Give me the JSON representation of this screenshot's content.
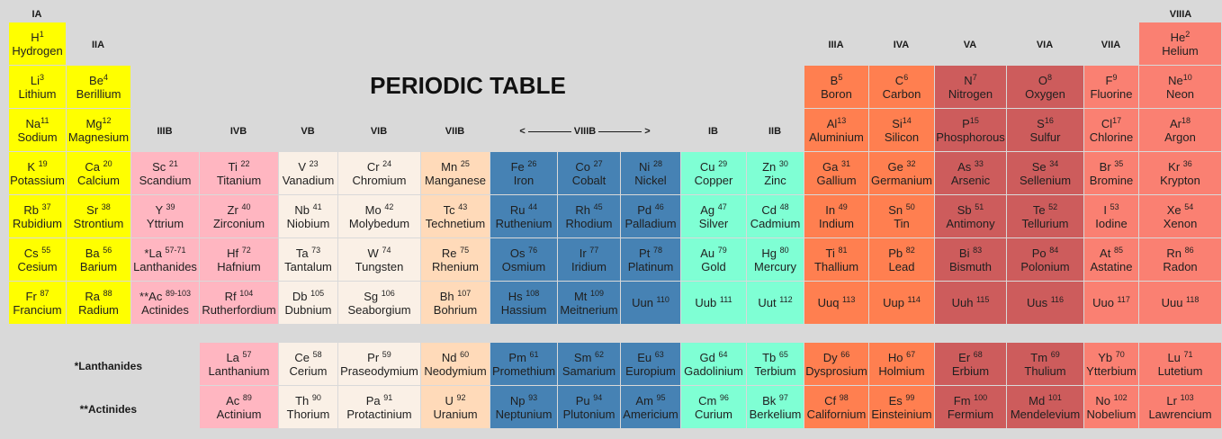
{
  "title": "PERIODIC TABLE",
  "colors": {
    "alkali": "#ffff00",
    "transition_b3b4": "#ffb6c1",
    "transition_light": "#faf0e6",
    "transition_b7": "#ffdab9",
    "transition_viii": "#4682b4",
    "transition_ib": "#7fffd4",
    "post_transition": "#ff7f50",
    "metalloid": "#cd5c5c",
    "halogen_noble": "#fa8072"
  },
  "group_labels": {
    "IA": "IA",
    "IIA": "IIA",
    "IIIB": "IIIB",
    "IVB": "IVB",
    "VB": "VB",
    "VIB": "VIB",
    "VIIB": "VIIB",
    "VIIIB_left": "<",
    "VIIIB": "VIIIB",
    "VIIIB_right": ">",
    "IB": "IB",
    "IIB": "IIB",
    "IIIA": "IIIA",
    "IVA": "IVA",
    "VA": "VA",
    "VIA": "VIA",
    "VIIA": "VIIA",
    "VIIIA": "VIIIA"
  },
  "row_labels": {
    "lanthanides": "*Lanthanides",
    "actinides": "**Actinides"
  },
  "elements": [
    {
      "sym": "H",
      "num": "1",
      "name": "Hydrogen",
      "sup_inline": true
    },
    {
      "sym": "He",
      "num": "2",
      "name": "Helium",
      "sup_inline": true
    },
    {
      "sym": "Li",
      "num": "3",
      "name": "Lithium",
      "sup_inline": true
    },
    {
      "sym": "Be",
      "num": "4",
      "name": "Berillium",
      "sup_inline": true
    },
    {
      "sym": "B",
      "num": "5",
      "name": "Boron",
      "sup_inline": true
    },
    {
      "sym": "C",
      "num": "6",
      "name": "Carbon",
      "sup_inline": true
    },
    {
      "sym": "N",
      "num": "7",
      "name": "Nitrogen",
      "sup_inline": true
    },
    {
      "sym": "O",
      "num": "8",
      "name": "Oxygen",
      "sup_inline": true
    },
    {
      "sym": "F",
      "num": "9",
      "name": "Fluorine",
      "sup_inline": true
    },
    {
      "sym": "Ne",
      "num": "10",
      "name": "Neon",
      "sup_inline": true
    },
    {
      "sym": "Na",
      "num": "11",
      "name": "Sodium",
      "sup_inline": true
    },
    {
      "sym": "Mg",
      "num": "12",
      "name": "Magnesium",
      "sup_inline": true
    },
    {
      "sym": "Al",
      "num": "13",
      "name": "Aluminium",
      "sup_inline": true
    },
    {
      "sym": "Si",
      "num": "14",
      "name": "Silicon",
      "sup_inline": true
    },
    {
      "sym": "P",
      "num": "15",
      "name": "Phosphorous",
      "sup_inline": true
    },
    {
      "sym": "S",
      "num": "16",
      "name": "Sulfur",
      "sup_inline": true
    },
    {
      "sym": "Cl",
      "num": "17",
      "name": "Chlorine",
      "sup_inline": true
    },
    {
      "sym": "Ar",
      "num": "18",
      "name": "Argon",
      "sup_inline": true
    },
    {
      "sym": "K",
      "num": "19",
      "name": "Potassium"
    },
    {
      "sym": "Ca",
      "num": "20",
      "name": "Calcium"
    },
    {
      "sym": "Sc",
      "num": "21",
      "name": "Scandium"
    },
    {
      "sym": "Ti",
      "num": "22",
      "name": "Titanium"
    },
    {
      "sym": "V",
      "num": "23",
      "name": "Vanadium"
    },
    {
      "sym": "Cr",
      "num": "24",
      "name": "Chromium"
    },
    {
      "sym": "Mn",
      "num": "25",
      "name": "Manganese"
    },
    {
      "sym": "Fe",
      "num": "26",
      "name": "Iron"
    },
    {
      "sym": "Co",
      "num": "27",
      "name": "Cobalt"
    },
    {
      "sym": "Ni",
      "num": "28",
      "name": "Nickel"
    },
    {
      "sym": "Cu",
      "num": "29",
      "name": "Copper"
    },
    {
      "sym": "Zn",
      "num": "30",
      "name": "Zinc"
    },
    {
      "sym": "Ga",
      "num": "31",
      "name": "Gallium"
    },
    {
      "sym": "Ge",
      "num": "32",
      "name": "Germanium"
    },
    {
      "sym": "As",
      "num": "33",
      "name": "Arsenic"
    },
    {
      "sym": "Se",
      "num": "34",
      "name": "Sellenium"
    },
    {
      "sym": "Br",
      "num": "35",
      "name": "Bromine"
    },
    {
      "sym": "Kr",
      "num": "36",
      "name": "Krypton"
    },
    {
      "sym": "Rb",
      "num": "37",
      "name": "Rubidium"
    },
    {
      "sym": "Sr",
      "num": "38",
      "name": "Strontium"
    },
    {
      "sym": "Y",
      "num": "39",
      "name": "Yttrium"
    },
    {
      "sym": "Zr",
      "num": "40",
      "name": "Zirconium"
    },
    {
      "sym": "Nb",
      "num": "41",
      "name": "Niobium"
    },
    {
      "sym": "Mo",
      "num": "42",
      "name": "Molybedum"
    },
    {
      "sym": "Tc",
      "num": "43",
      "name": "Technetium"
    },
    {
      "sym": "Ru",
      "num": "44",
      "name": "Ruthenium"
    },
    {
      "sym": "Rh",
      "num": "45",
      "name": "Rhodium"
    },
    {
      "sym": "Pd",
      "num": "46",
      "name": "Palladium"
    },
    {
      "sym": "Ag",
      "num": "47",
      "name": "Silver"
    },
    {
      "sym": "Cd",
      "num": "48",
      "name": "Cadmium"
    },
    {
      "sym": "In",
      "num": "49",
      "name": "Indium"
    },
    {
      "sym": "Sn",
      "num": "50",
      "name": "Tin"
    },
    {
      "sym": "Sb",
      "num": "51",
      "name": "Antimony"
    },
    {
      "sym": "Te",
      "num": "52",
      "name": "Tellurium"
    },
    {
      "sym": "I",
      "num": "53",
      "name": "Iodine"
    },
    {
      "sym": "Xe",
      "num": "54",
      "name": "Xenon"
    },
    {
      "sym": "Cs",
      "num": "55",
      "name": "Cesium"
    },
    {
      "sym": "Ba",
      "num": "56",
      "name": "Barium"
    },
    {
      "sym": "*La",
      "num": "57-71",
      "name": "Lanthanides"
    },
    {
      "sym": "Hf",
      "num": "72",
      "name": "Hafnium"
    },
    {
      "sym": "Ta",
      "num": "73",
      "name": "Tantalum"
    },
    {
      "sym": "W",
      "num": "74",
      "name": "Tungsten"
    },
    {
      "sym": "Re",
      "num": "75",
      "name": "Rhenium"
    },
    {
      "sym": "Os",
      "num": "76",
      "name": "Osmium"
    },
    {
      "sym": "Ir",
      "num": "77",
      "name": "Iridium"
    },
    {
      "sym": "Pt",
      "num": "78",
      "name": "Platinum"
    },
    {
      "sym": "Au",
      "num": "79",
      "name": "Gold"
    },
    {
      "sym": "Hg",
      "num": "80",
      "name": "Mercury"
    },
    {
      "sym": "Ti",
      "num": "81",
      "name": "Thallium"
    },
    {
      "sym": "Pb",
      "num": "82",
      "name": "Lead"
    },
    {
      "sym": "Bi",
      "num": "83",
      "name": "Bismuth"
    },
    {
      "sym": "Po",
      "num": "84",
      "name": "Polonium"
    },
    {
      "sym": "At",
      "num": "85",
      "name": "Astatine"
    },
    {
      "sym": "Rn",
      "num": "86",
      "name": "Radon"
    },
    {
      "sym": "Fr",
      "num": "87",
      "name": "Francium"
    },
    {
      "sym": "Ra",
      "num": "88",
      "name": "Radium"
    },
    {
      "sym": "**Ac",
      "num": "89-103",
      "name": "Actinides"
    },
    {
      "sym": "Rf",
      "num": "104",
      "name": "Rutherfordium"
    },
    {
      "sym": "Db",
      "num": "105",
      "name": "Dubnium"
    },
    {
      "sym": "Sg",
      "num": "106",
      "name": "Seaborgium"
    },
    {
      "sym": "Bh",
      "num": "107",
      "name": "Bohrium"
    },
    {
      "sym": "Hs",
      "num": "108",
      "name": "Hassium"
    },
    {
      "sym": "Mt",
      "num": "109",
      "name": "Meitnerium"
    },
    {
      "sym": "Uun",
      "num": "110",
      "name": ""
    },
    {
      "sym": "Uub",
      "num": "111",
      "name": ""
    },
    {
      "sym": "Uut",
      "num": "112",
      "name": ""
    },
    {
      "sym": "Uuq",
      "num": "113",
      "name": ""
    },
    {
      "sym": "Uup",
      "num": "114",
      "name": ""
    },
    {
      "sym": "Uuh",
      "num": "115",
      "name": ""
    },
    {
      "sym": "Uus",
      "num": "116",
      "name": ""
    },
    {
      "sym": "Uuo",
      "num": "117",
      "name": ""
    },
    {
      "sym": "Uuu",
      "num": "118",
      "name": ""
    },
    {
      "sym": "La",
      "num": "57",
      "name": "Lanthanium"
    },
    {
      "sym": "Ce",
      "num": "58",
      "name": "Cerium"
    },
    {
      "sym": "Pr",
      "num": "59",
      "name": "Praseodymium"
    },
    {
      "sym": "Nd",
      "num": "60",
      "name": "Neodymium"
    },
    {
      "sym": "Pm",
      "num": "61",
      "name": "Promethium"
    },
    {
      "sym": "Sm",
      "num": "62",
      "name": "Samarium"
    },
    {
      "sym": "Eu",
      "num": "63",
      "name": "Europium"
    },
    {
      "sym": "Gd",
      "num": "64",
      "name": "Gadolinium"
    },
    {
      "sym": "Tb",
      "num": "65",
      "name": "Terbium"
    },
    {
      "sym": "Dy",
      "num": "66",
      "name": "Dysprosium"
    },
    {
      "sym": "Ho",
      "num": "67",
      "name": "Holmium"
    },
    {
      "sym": "Er",
      "num": "68",
      "name": "Erbium"
    },
    {
      "sym": "Tm",
      "num": "69",
      "name": "Thulium"
    },
    {
      "sym": "Yb",
      "num": "70",
      "name": "Ytterbium"
    },
    {
      "sym": "Lu",
      "num": "71",
      "name": "Lutetium"
    },
    {
      "sym": "Ac",
      "num": "89",
      "name": "Actinium"
    },
    {
      "sym": "Th",
      "num": "90",
      "name": "Thorium"
    },
    {
      "sym": "Pa",
      "num": "91",
      "name": "Protactinium"
    },
    {
      "sym": "U",
      "num": "92",
      "name": "Uranium"
    },
    {
      "sym": "Np",
      "num": "93",
      "name": "Neptunium"
    },
    {
      "sym": "Pu",
      "num": "94",
      "name": "Plutonium"
    },
    {
      "sym": "Am",
      "num": "95",
      "name": "Americium"
    },
    {
      "sym": "Cm",
      "num": "96",
      "name": "Curium"
    },
    {
      "sym": "Bk",
      "num": "97",
      "name": "Berkelium"
    },
    {
      "sym": "Cf",
      "num": "98",
      "name": "Californium"
    },
    {
      "sym": "Es",
      "num": "99",
      "name": "Einsteinium"
    },
    {
      "sym": "Fm",
      "num": "100",
      "name": "Fermium"
    },
    {
      "sym": "Md",
      "num": "101",
      "name": "Mendelevium"
    },
    {
      "sym": "No",
      "num": "102",
      "name": "Nobelium"
    },
    {
      "sym": "Lr",
      "num": "103",
      "name": "Lawrencium"
    }
  ]
}
